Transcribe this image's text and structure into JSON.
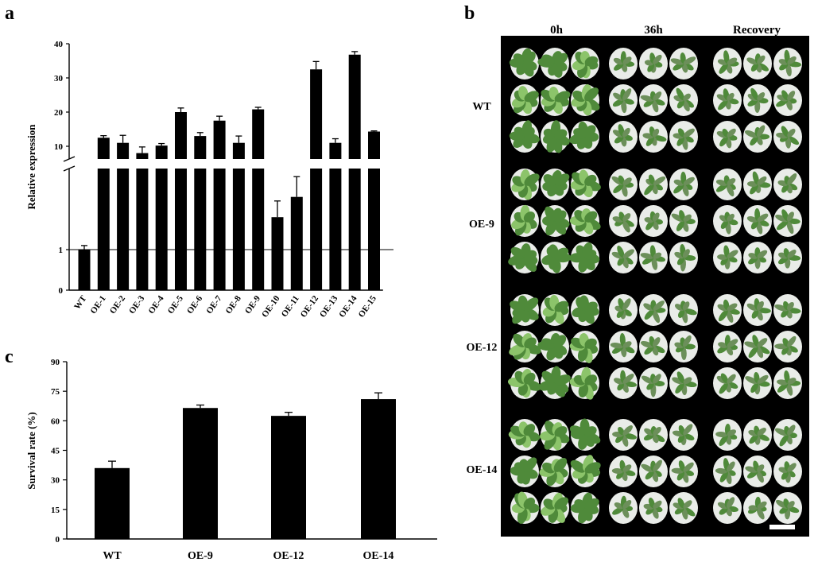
{
  "panels": {
    "a": "a",
    "b": "b",
    "c": "c"
  },
  "chart_data": [
    {
      "type": "bar",
      "panel": "a",
      "title": "",
      "xlabel": "",
      "ylabel": "Relative expression",
      "axis_break": true,
      "categories": [
        "WT",
        "OE-1",
        "OE-2",
        "OE-3",
        "OE-4",
        "OE-5",
        "OE-6",
        "OE-7",
        "OE-8",
        "OE-9",
        "OE-10",
        "OE-11",
        "OE-12",
        "OE-13",
        "OE-14",
        "OE-15"
      ],
      "values": [
        1.0,
        12.5,
        11.0,
        8.0,
        10.2,
        20.0,
        13.0,
        17.5,
        11.0,
        20.8,
        1.8,
        2.3,
        32.5,
        11.0,
        36.8,
        14.3
      ],
      "errors": [
        0.1,
        0.6,
        2.2,
        1.8,
        0.6,
        1.2,
        1.0,
        1.3,
        2.0,
        0.6,
        0.4,
        0.5,
        2.3,
        1.2,
        0.9,
        0.2
      ],
      "lower_ticks": [
        "0",
        "1"
      ],
      "upper_ticks": [
        "10",
        "20",
        "30",
        "40"
      ],
      "reference_line": 1,
      "grid": false
    },
    {
      "type": "bar",
      "panel": "c",
      "title": "",
      "xlabel": "",
      "ylabel": "Survival rate (%)",
      "ylim": [
        0,
        90
      ],
      "yticks": [
        "0",
        "15",
        "30",
        "45",
        "60",
        "75",
        "90"
      ],
      "categories": [
        "WT",
        "OE-9",
        "OE-12",
        "OE-14"
      ],
      "values": [
        36,
        66.5,
        62.5,
        71
      ],
      "errors": [
        3.5,
        1.5,
        1.8,
        3.2
      ],
      "grid": false
    }
  ],
  "photo_panel": {
    "columns": [
      "0h",
      "36h",
      "Recovery"
    ],
    "rows": [
      "WT",
      "OE-9",
      "OE-12",
      "OE-14"
    ],
    "colors": {
      "background": "#000000",
      "pot": "#e9ece8",
      "leaf_dark": "#4f8a3a",
      "leaf_light": "#8cc46a",
      "leaf_stressed": "#6c8f5a",
      "scale_bar": "#ffffff"
    }
  }
}
